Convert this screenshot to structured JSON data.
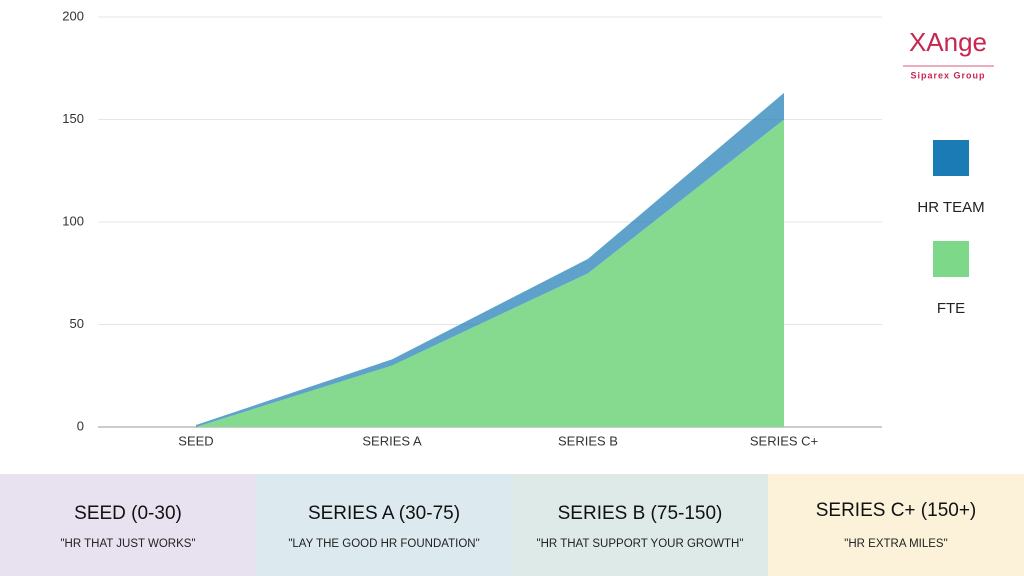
{
  "chart_data": {
    "type": "area",
    "stacked": true,
    "categories": [
      "SEED",
      "SERIES A",
      "SERIES B",
      "SERIES C+"
    ],
    "series": [
      {
        "name": "FTE",
        "color": "#7ed88a",
        "values": [
          0,
          30,
          75,
          150
        ]
      },
      {
        "name": "HR TEAM",
        "color": "#1a7bb5",
        "values": [
          1,
          3,
          7,
          13
        ]
      }
    ],
    "ylim": [
      0,
      200
    ],
    "yticks": [
      0,
      50,
      100,
      150,
      200
    ],
    "grid": true
  },
  "logo": {
    "title": "XAnge",
    "subtitle": "Siparex Group"
  },
  "stages": [
    {
      "title": "SEED (0-30)",
      "quote": "\"HR THAT JUST WORKS\""
    },
    {
      "title": "SERIES A (30-75)",
      "quote": "\"LAY THE GOOD HR FOUNDATION\""
    },
    {
      "title": "SERIES B (75-150)",
      "quote": "\"HR THAT SUPPORT YOUR GROWTH\""
    },
    {
      "title": "SERIES C+ (150+)",
      "quote": "\"HR EXTRA MILES\""
    }
  ]
}
